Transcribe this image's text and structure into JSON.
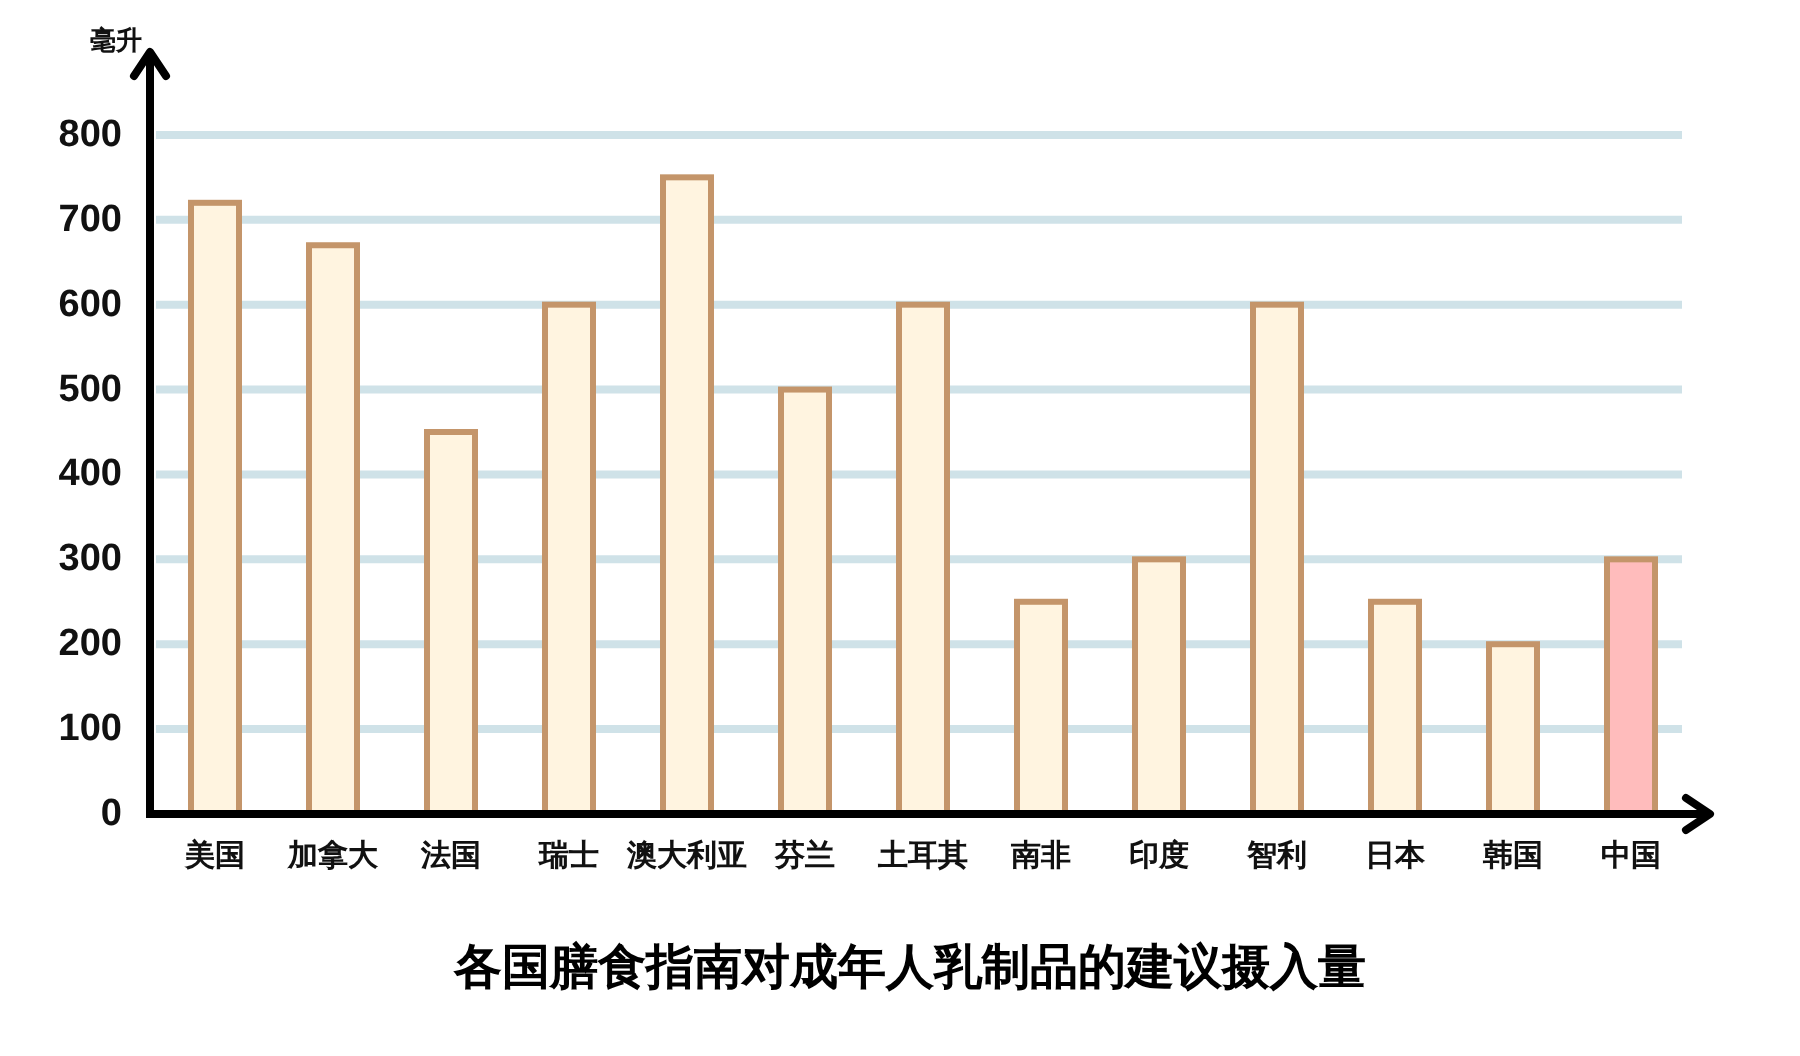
{
  "chart_data": {
    "type": "bar",
    "title": "各国膳食指南对成年人乳制品的建议摄入量",
    "ylabel": "毫升",
    "categories": [
      "美国",
      "加拿大",
      "法国",
      "瑞士",
      "澳大利亚",
      "芬兰",
      "土耳其",
      "南非",
      "印度",
      "智利",
      "日本",
      "韩国",
      "中国"
    ],
    "values": [
      720,
      670,
      450,
      600,
      750,
      500,
      600,
      250,
      300,
      600,
      250,
      200,
      300
    ],
    "colors": [
      "#fff4e0",
      "#fff4e0",
      "#fff4e0",
      "#fff4e0",
      "#fff4e0",
      "#fff4e0",
      "#fff4e0",
      "#fff4e0",
      "#fff4e0",
      "#fff4e0",
      "#fff4e0",
      "#fff4e0",
      "#ffbcbc"
    ],
    "ylim": [
      0,
      900
    ],
    "yticks": [
      0,
      100,
      200,
      300,
      400,
      500,
      600,
      700,
      800
    ],
    "grid": "y"
  }
}
